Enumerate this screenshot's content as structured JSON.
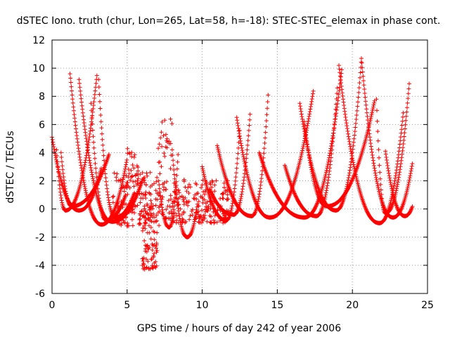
{
  "chart_data": {
    "type": "scatter",
    "title": "dSTEC Iono. truth (chur, Lon=265, Lat=58, h=-18): STEC-STEC_elemax in phase cont.",
    "xlabel": "GPS time / hours of day 242 of year 2006",
    "ylabel": "dSTEC  / TECUs",
    "xlim": [
      0,
      25
    ],
    "ylim": [
      -6,
      12
    ],
    "xticks": [
      "0",
      "5",
      "10",
      "15",
      "20",
      "25"
    ],
    "yticks": [
      "-6",
      "-4",
      "-2",
      "0",
      "2",
      "4",
      "6",
      "8",
      "10",
      "12"
    ],
    "grid": true,
    "marker": "+",
    "color": "#ff0000",
    "series": [
      {
        "arcs": [
          {
            "t0": 0.0,
            "t1": 3.3,
            "tmin": 1.8,
            "ystart": 5.1,
            "yend": 3.0,
            "ymin": -0.1
          },
          {
            "t0": 0.3,
            "t1": 3.0,
            "tmin": 0.9,
            "ystart": 4.2,
            "yend": 9.6,
            "ymin": -0.1
          },
          {
            "t0": 0.6,
            "t1": 3.8,
            "tmin": 1.3,
            "ystart": 4.0,
            "yend": 3.9,
            "ymin": 0.2
          },
          {
            "t0": 1.2,
            "t1": 5.0,
            "tmin": 3.3,
            "ystart": 9.6,
            "yend": 3.6,
            "ymin": -1.1
          },
          {
            "t0": 1.8,
            "t1": 6.0,
            "tmin": 4.0,
            "ystart": 9.2,
            "yend": 2.0,
            "ymin": -0.9
          },
          {
            "t0": 2.6,
            "t1": 4.9,
            "tmin": 3.6,
            "ystart": 7.5,
            "yend": 1.0,
            "ymin": -0.8
          },
          {
            "t0": 3.1,
            "t1": 5.5,
            "tmin": 4.2,
            "ystart": 9.2,
            "yend": 1.2,
            "ymin": -0.6
          },
          {
            "t0": 7.1,
            "t1": 8.4,
            "tmin": 7.8,
            "ystart": 2.0,
            "yend": 4.1,
            "ymin": -1.3
          },
          {
            "t0": 8.0,
            "t1": 9.7,
            "tmin": 9.0,
            "ystart": 4.2,
            "yend": 0.5,
            "ymin": -2.0
          },
          {
            "t0": 10.0,
            "t1": 12.5,
            "tmin": 11.6,
            "ystart": 3.0,
            "yend": 5.7,
            "ymin": -0.8
          },
          {
            "t0": 10.5,
            "t1": 13.2,
            "tmin": 12.1,
            "ystart": 1.4,
            "yend": 6.9,
            "ymin": -0.4
          },
          {
            "t0": 11.0,
            "t1": 14.4,
            "tmin": 13.3,
            "ystart": 4.5,
            "yend": 8.3,
            "ymin": -0.5
          },
          {
            "t0": 12.3,
            "t1": 17.4,
            "tmin": 14.5,
            "ystart": 6.5,
            "yend": 8.4,
            "ymin": -0.6
          },
          {
            "t0": 13.8,
            "t1": 19.3,
            "tmin": 16.8,
            "ystart": 4.0,
            "yend": 10.0,
            "ymin": -0.6
          },
          {
            "t0": 15.5,
            "t1": 19.0,
            "tmin": 17.6,
            "ystart": 3.1,
            "yend": 8.6,
            "ymin": -0.5
          },
          {
            "t0": 16.8,
            "t1": 21.5,
            "tmin": 18.3,
            "ystart": 6.2,
            "yend": 7.8,
            "ymin": 0.2
          },
          {
            "t0": 16.5,
            "t1": 20.6,
            "tmin": 18.9,
            "ystart": 7.5,
            "yend": 10.6,
            "ymin": -0.1
          },
          {
            "t0": 19.1,
            "t1": 23.4,
            "tmin": 21.8,
            "ystart": 10.2,
            "yend": 7.0,
            "ymin": -1.0
          },
          {
            "t0": 20.6,
            "t1": 24.0,
            "tmin": 22.7,
            "ystart": 10.7,
            "yend": 3.3,
            "ymin": -0.6
          },
          {
            "t0": 21.6,
            "t1": 23.8,
            "tmin": 22.2,
            "ystart": 7.8,
            "yend": 9.1,
            "ymin": -0.3
          },
          {
            "t0": 22.2,
            "t1": 24.0,
            "tmin": 23.5,
            "ystart": 4.1,
            "yend": 0.2,
            "ymin": -0.5
          }
        ]
      }
    ],
    "clusters": [
      {
        "t0": 4.0,
        "t1": 7.2,
        "ymin": -1.2,
        "ymax": 2.6,
        "n": 160
      },
      {
        "t0": 6.0,
        "t1": 7.0,
        "ymin": -4.3,
        "ymax": 0.5,
        "n": 80
      },
      {
        "t0": 7.0,
        "t1": 8.0,
        "ymin": -0.7,
        "ymax": 6.4,
        "n": 60
      },
      {
        "t0": 8.0,
        "t1": 11.8,
        "ymin": -1.0,
        "ymax": 2.2,
        "n": 200
      },
      {
        "t0": 5.0,
        "t1": 5.8,
        "ymin": 1.5,
        "ymax": 4.6,
        "n": 25
      }
    ]
  }
}
